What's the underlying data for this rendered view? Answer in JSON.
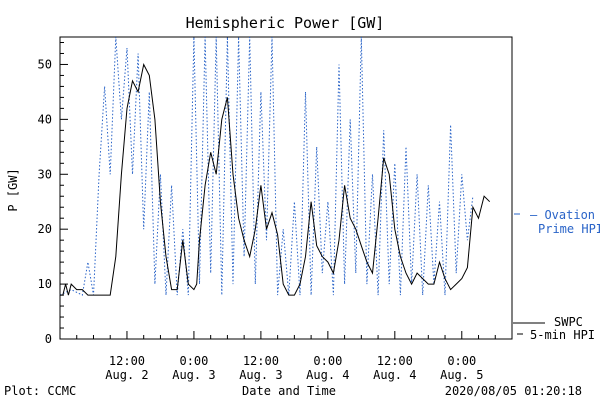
{
  "chart_data": {
    "type": "line",
    "title": "Hemispheric Power [GW]",
    "xlabel": "Date and Time",
    "ylabel": "P [GW]",
    "ylim": [
      0,
      55
    ],
    "yticks": [
      0,
      10,
      20,
      30,
      40,
      50
    ],
    "xlim_hours": [
      0,
      81
    ],
    "xticks": [
      {
        "h": 12,
        "time": "12:00",
        "date": "Aug. 2"
      },
      {
        "h": 24,
        "time": "0:00",
        "date": "Aug. 3"
      },
      {
        "h": 36,
        "time": "12:00",
        "date": "Aug. 3"
      },
      {
        "h": 48,
        "time": "0:00",
        "date": "Aug. 4"
      },
      {
        "h": 60,
        "time": "12:00",
        "date": "Aug. 4"
      },
      {
        "h": 72,
        "time": "0:00",
        "date": "Aug. 5"
      }
    ],
    "grid": false,
    "series": [
      {
        "name": "Ovation Prime HPI",
        "style": "dotted",
        "color": "#2a64c8",
        "points": [
          [
            0,
            8
          ],
          [
            2,
            9
          ],
          [
            4,
            8
          ],
          [
            5,
            14
          ],
          [
            6,
            8
          ],
          [
            7,
            30
          ],
          [
            8,
            46
          ],
          [
            9,
            30
          ],
          [
            10,
            55
          ],
          [
            11,
            40
          ],
          [
            12,
            53
          ],
          [
            13,
            30
          ],
          [
            14,
            52
          ],
          [
            15,
            20
          ],
          [
            16,
            45
          ],
          [
            17,
            10
          ],
          [
            18,
            30
          ],
          [
            19,
            8
          ],
          [
            20,
            28
          ],
          [
            21,
            8
          ],
          [
            22,
            20
          ],
          [
            23,
            8
          ],
          [
            24,
            55
          ],
          [
            25,
            10
          ],
          [
            26,
            55
          ],
          [
            27,
            12
          ],
          [
            28,
            55
          ],
          [
            29,
            8
          ],
          [
            30,
            55
          ],
          [
            31,
            10
          ],
          [
            32,
            55
          ],
          [
            33,
            15
          ],
          [
            34,
            55
          ],
          [
            35,
            10
          ],
          [
            36,
            45
          ],
          [
            37,
            18
          ],
          [
            38,
            55
          ],
          [
            39,
            8
          ],
          [
            40,
            20
          ],
          [
            41,
            8
          ],
          [
            42,
            25
          ],
          [
            43,
            8
          ],
          [
            44,
            45
          ],
          [
            45,
            8
          ],
          [
            46,
            35
          ],
          [
            47,
            12
          ],
          [
            48,
            25
          ],
          [
            49,
            8
          ],
          [
            50,
            50
          ],
          [
            51,
            10
          ],
          [
            52,
            40
          ],
          [
            53,
            12
          ],
          [
            54,
            55
          ],
          [
            55,
            10
          ],
          [
            56,
            30
          ],
          [
            57,
            8
          ],
          [
            58,
            38
          ],
          [
            59,
            10
          ],
          [
            60,
            32
          ],
          [
            61,
            8
          ],
          [
            62,
            35
          ],
          [
            63,
            10
          ],
          [
            64,
            30
          ],
          [
            65,
            8
          ],
          [
            66,
            28
          ],
          [
            67,
            10
          ],
          [
            68,
            25
          ],
          [
            69,
            8
          ],
          [
            70,
            39
          ],
          [
            71,
            12
          ],
          [
            72,
            30
          ],
          [
            73,
            18
          ],
          [
            74,
            26
          ]
        ]
      },
      {
        "name": "SWPC 5-min HPI",
        "style": "solid",
        "color": "#000000",
        "points": [
          [
            0,
            8
          ],
          [
            0.5,
            8
          ],
          [
            1,
            10
          ],
          [
            1.5,
            8
          ],
          [
            2,
            10
          ],
          [
            3,
            9
          ],
          [
            4,
            9
          ],
          [
            5,
            8
          ],
          [
            8,
            8
          ],
          [
            9,
            8
          ],
          [
            10,
            15
          ],
          [
            11,
            30
          ],
          [
            12,
            42
          ],
          [
            13,
            47
          ],
          [
            14,
            45
          ],
          [
            15,
            50
          ],
          [
            16,
            48
          ],
          [
            17,
            40
          ],
          [
            18,
            25
          ],
          [
            19,
            15
          ],
          [
            20,
            9
          ],
          [
            21,
            9
          ],
          [
            22,
            18
          ],
          [
            23,
            10
          ],
          [
            24,
            9
          ],
          [
            24.5,
            10
          ],
          [
            25,
            18
          ],
          [
            26,
            28
          ],
          [
            27,
            34
          ],
          [
            28,
            30
          ],
          [
            29,
            40
          ],
          [
            30,
            44
          ],
          [
            31,
            30
          ],
          [
            32,
            22
          ],
          [
            33,
            18
          ],
          [
            34,
            15
          ],
          [
            35,
            20
          ],
          [
            36,
            28
          ],
          [
            37,
            20
          ],
          [
            38,
            23
          ],
          [
            39,
            19
          ],
          [
            40,
            10
          ],
          [
            41,
            8
          ],
          [
            42,
            8
          ],
          [
            43,
            10
          ],
          [
            44,
            15
          ],
          [
            45,
            25
          ],
          [
            46,
            17
          ],
          [
            47,
            15
          ],
          [
            48,
            14
          ],
          [
            49,
            12
          ],
          [
            50,
            18
          ],
          [
            51,
            28
          ],
          [
            52,
            22
          ],
          [
            53,
            20
          ],
          [
            54,
            17
          ],
          [
            55,
            14
          ],
          [
            56,
            12
          ],
          [
            57,
            22
          ],
          [
            58,
            33
          ],
          [
            59,
            30
          ],
          [
            60,
            20
          ],
          [
            61,
            15
          ],
          [
            62,
            12
          ],
          [
            63,
            10
          ],
          [
            64,
            12
          ],
          [
            65,
            11
          ],
          [
            66,
            10
          ],
          [
            67,
            10
          ],
          [
            68,
            14
          ],
          [
            69,
            11
          ],
          [
            70,
            9
          ],
          [
            71,
            10
          ],
          [
            72,
            11
          ],
          [
            73,
            13
          ],
          [
            74,
            24
          ],
          [
            75,
            22
          ],
          [
            76,
            26
          ],
          [
            77,
            25
          ]
        ]
      }
    ],
    "legend": [
      {
        "label": "— Ovation",
        "color": "#2a64c8"
      },
      {
        "label": "Prime HPI",
        "color": "#2a64c8"
      },
      {
        "label": "SWPC",
        "color": "#000000"
      },
      {
        "label": "5-min HPI",
        "color": "#000000"
      }
    ],
    "legend_position": "right"
  },
  "footer": {
    "plot_credit": "Plot: CCMC",
    "timestamp": "2020/08/05 01:20:18"
  }
}
